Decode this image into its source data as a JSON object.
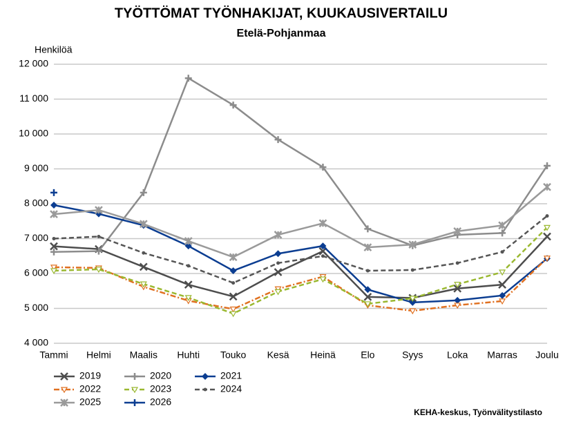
{
  "chart_data": {
    "type": "line",
    "title": "TYÖTTÖMAT TYÖNHAKIJAT, KUUKAUSIVERTAILU",
    "subtitle": "Etelä-Pohjanmaa",
    "y_label": "Henkilöä",
    "source": "KEHA-keskus, Työnvälitystilasto",
    "categories": [
      "Tammi",
      "Helmi",
      "Maalis",
      "Huhti",
      "Touko",
      "Kesä",
      "Heinä",
      "Elo",
      "Syys",
      "Loka",
      "Marras",
      "Joulu"
    ],
    "ylim": [
      4000,
      12000
    ],
    "yticks": [
      {
        "value": 4000,
        "label": "4 000"
      },
      {
        "value": 5000,
        "label": "5 000"
      },
      {
        "value": 6000,
        "label": "6 000"
      },
      {
        "value": 7000,
        "label": "7 000"
      },
      {
        "value": 8000,
        "label": "8 000"
      },
      {
        "value": 9000,
        "label": "9 000"
      },
      {
        "value": 10000,
        "label": "10 000"
      },
      {
        "value": 11000,
        "label": "11 000"
      },
      {
        "value": 12000,
        "label": "12 000"
      }
    ],
    "grid": true,
    "series": [
      {
        "name": "2019",
        "color": "#4d4d4d",
        "marker": "x",
        "dash": "solid",
        "values": [
          6780,
          6700,
          6190,
          5680,
          5340,
          6040,
          6640,
          5330,
          5300,
          5570,
          5680,
          7060
        ]
      },
      {
        "name": "2020",
        "color": "#8c8c8c",
        "marker": "plus",
        "dash": "solid",
        "values": [
          6620,
          6640,
          8320,
          11600,
          10830,
          9840,
          9050,
          7280,
          6800,
          7110,
          7160,
          9090
        ]
      },
      {
        "name": "2021",
        "color": "#0b3d91",
        "marker": "diamond",
        "dash": "solid",
        "values": [
          7960,
          7710,
          7380,
          6790,
          6080,
          6570,
          6790,
          5540,
          5170,
          5230,
          5370,
          6430
        ]
      },
      {
        "name": "2022",
        "color": "#e07020",
        "marker": "tri",
        "dash": "dashdot",
        "values": [
          6180,
          6160,
          5620,
          5220,
          4980,
          5560,
          5910,
          5090,
          4930,
          5090,
          5210,
          6440
        ]
      },
      {
        "name": "2023",
        "color": "#9ab830",
        "marker": "tri",
        "dash": "dash",
        "values": [
          6080,
          6120,
          5700,
          5310,
          4850,
          5480,
          5840,
          5130,
          5290,
          5690,
          6040,
          7320
        ]
      },
      {
        "name": "2024",
        "color": "#555555",
        "marker": "dot",
        "dash": "dash",
        "values": [
          7000,
          7060,
          6590,
          6220,
          5730,
          6300,
          6500,
          6080,
          6100,
          6300,
          6620,
          7650
        ]
      },
      {
        "name": "2025",
        "color": "#9a9a9a",
        "marker": "star",
        "dash": "solid",
        "values": [
          7700,
          7820,
          7420,
          6930,
          6470,
          7110,
          7440,
          6750,
          6830,
          7210,
          7380,
          8480
        ]
      },
      {
        "name": "2026",
        "color": "#0b3d91",
        "marker": "plus",
        "dash": "solid",
        "values": [
          8320,
          null,
          null,
          null,
          null,
          null,
          null,
          null,
          null,
          null,
          null,
          null
        ]
      }
    ]
  }
}
